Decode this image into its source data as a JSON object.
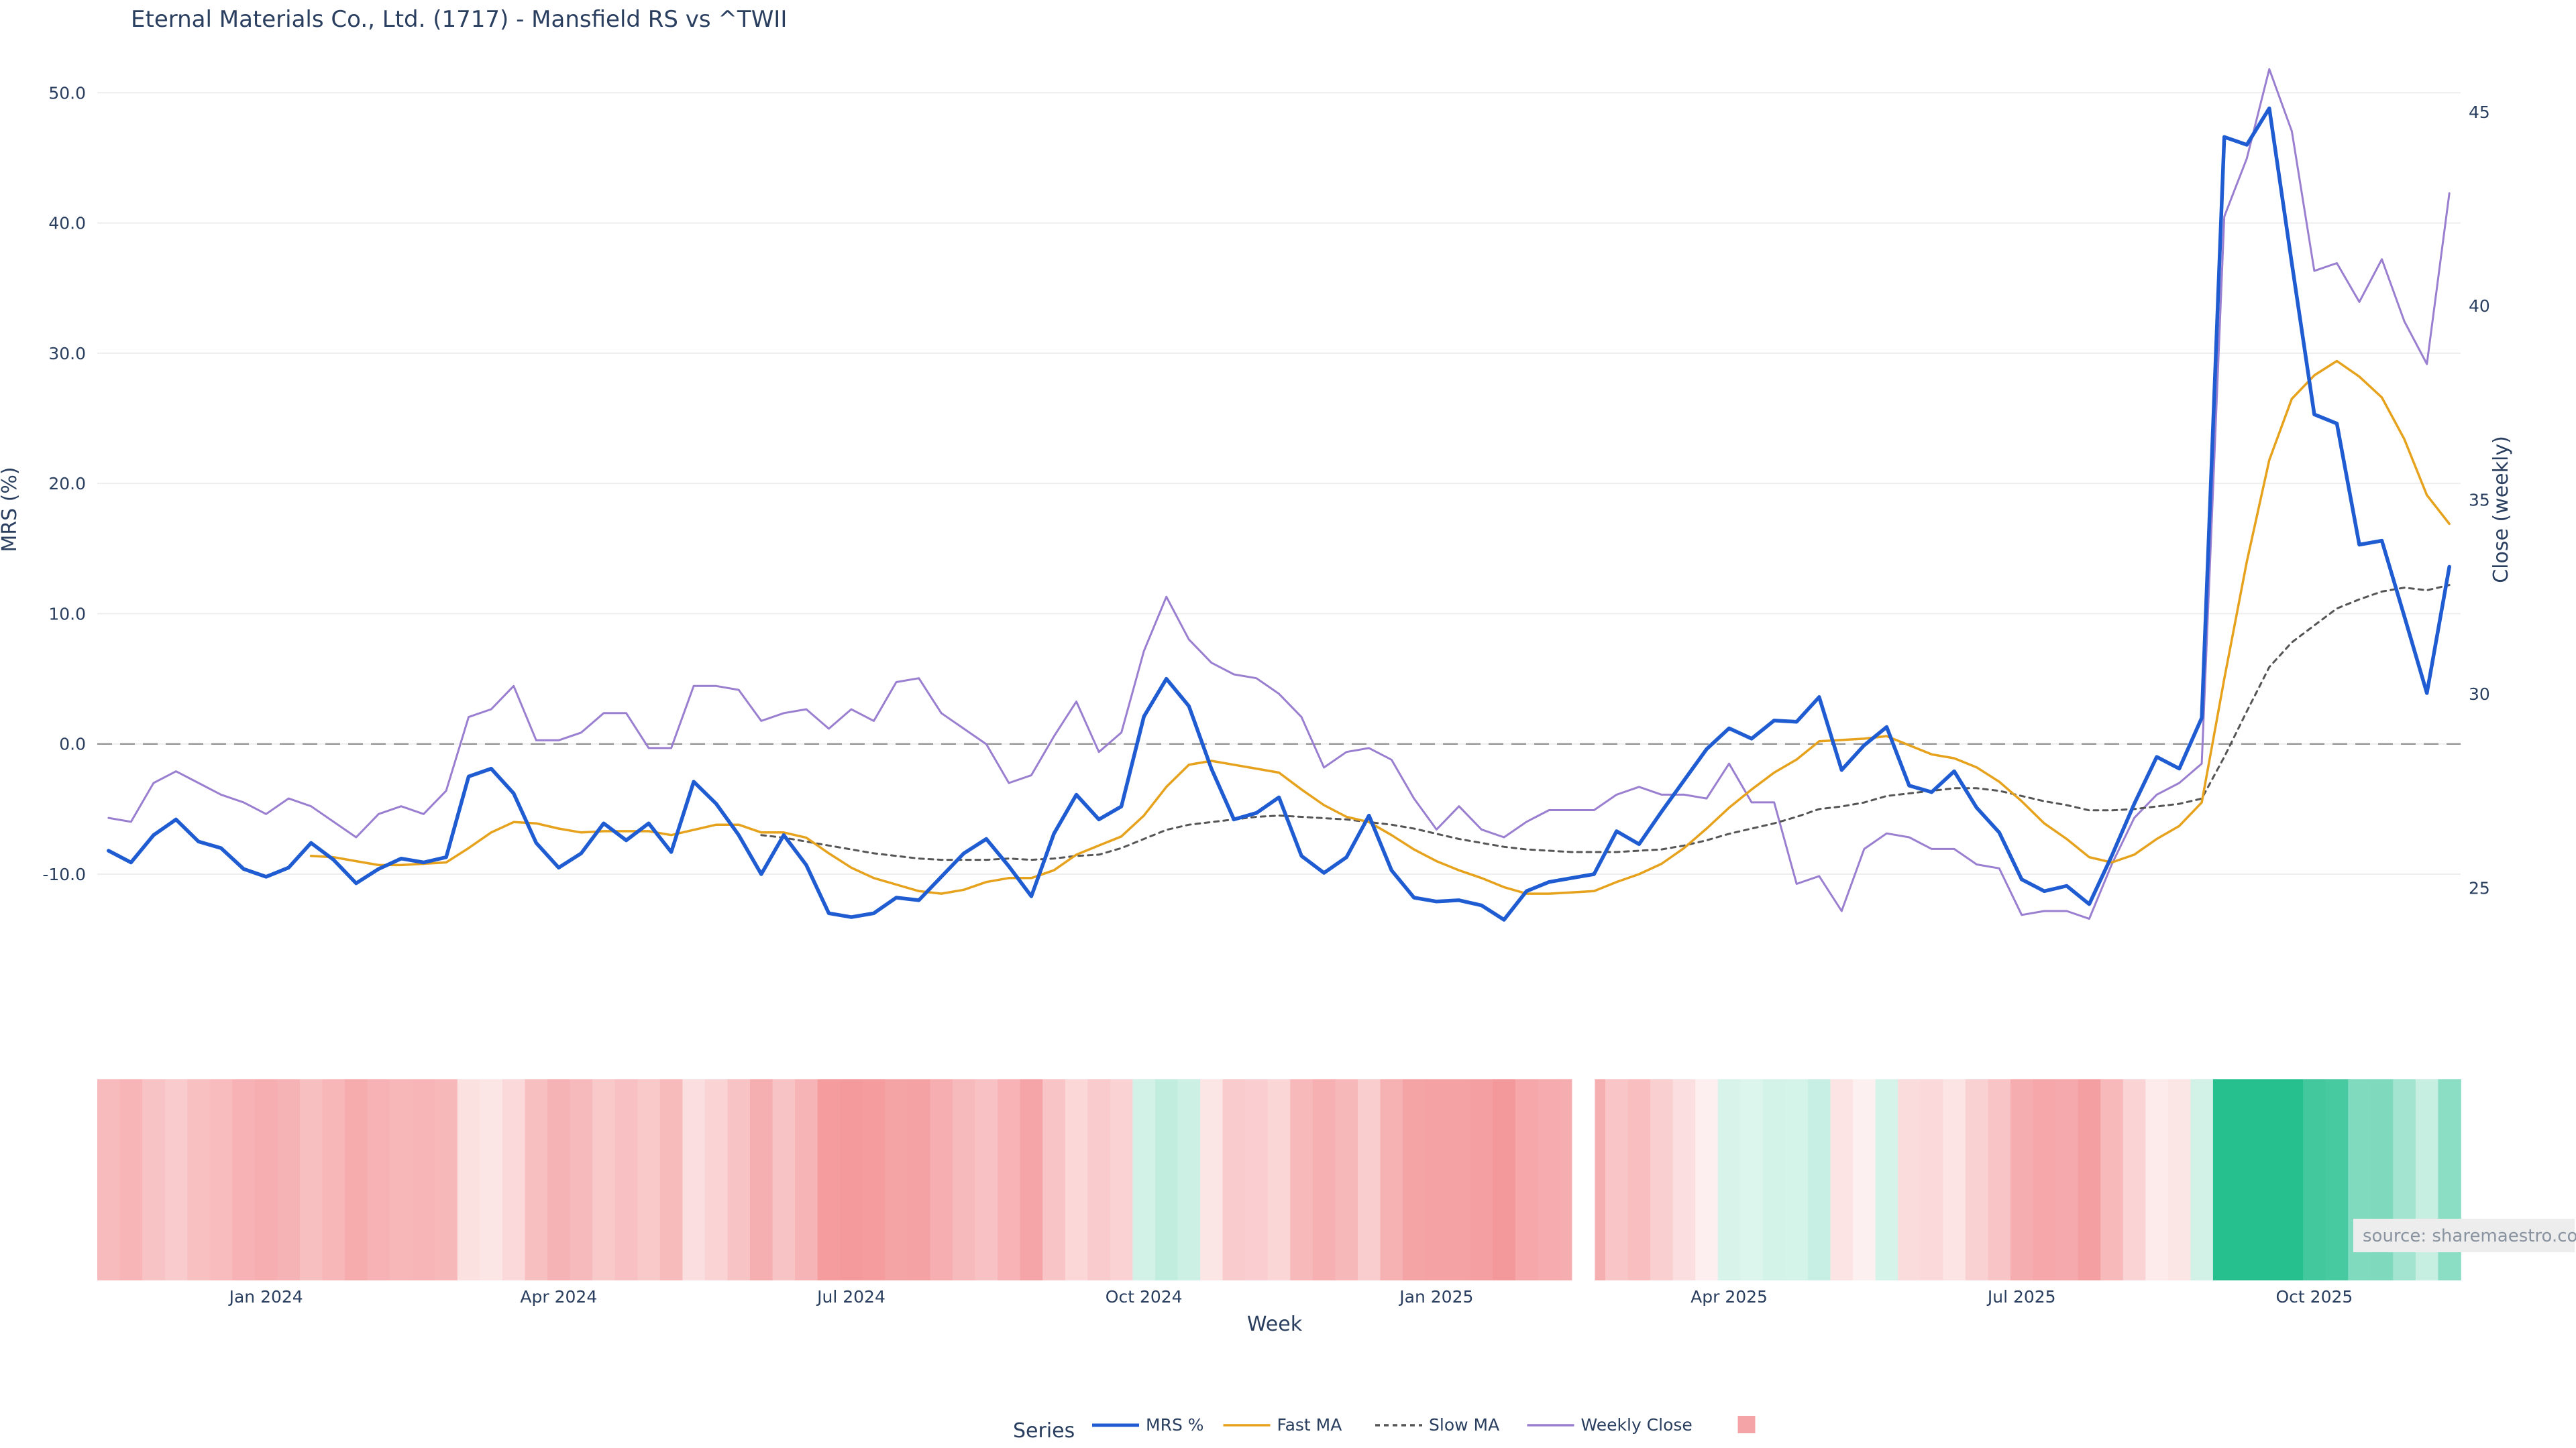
{
  "chart_data": {
    "type": "line",
    "title": "Eternal Materials Co., Ltd. (1717) - Mansfield RS vs ^TWII",
    "xlabel": "Week",
    "ylabel_left": "MRS (%)",
    "ylabel_right": "Close (weekly)",
    "y_left_range": [
      -17,
      53
    ],
    "y_left_ticks": [
      50,
      40,
      30,
      20,
      10,
      0,
      -10
    ],
    "y_left_tick_labels": [
      "50.0",
      "40.0",
      "30.0",
      "20.0",
      "10.0",
      "0.0",
      "-10.0"
    ],
    "y_right_range": [
      23.0,
      46.5
    ],
    "y_right_ticks": [
      45,
      40,
      35,
      30,
      25
    ],
    "y_right_tick_labels": [
      "45",
      "40",
      "35",
      "30",
      "25"
    ],
    "x_tick_labels": [
      "Jan 2024",
      "Apr 2024",
      "Jul 2024",
      "Oct 2024",
      "Jan 2025",
      "Apr 2025",
      "Jul 2025",
      "Oct 2025"
    ],
    "x_tick_weeks": [
      7,
      20,
      33,
      46,
      59,
      72,
      85,
      98
    ],
    "reference_line": 0,
    "gap_after_week": 65,
    "series": [
      {
        "name": "MRS %",
        "color": "#1f5bd1",
        "axis": "left",
        "style": "solid",
        "values": [
          -8.2,
          -9.1,
          -7.0,
          -5.8,
          -7.5,
          -8.0,
          -9.6,
          -10.2,
          -9.5,
          -7.6,
          -8.9,
          -10.7,
          -9.6,
          -8.8,
          -9.1,
          -8.7,
          -2.5,
          -1.9,
          -3.8,
          -7.6,
          -9.5,
          -8.4,
          -6.1,
          -7.4,
          -6.1,
          -8.3,
          -2.9,
          -4.6,
          -7.0,
          -10.0,
          -7.0,
          -9.3,
          -13.0,
          -13.3,
          -13.0,
          -11.8,
          -12.0,
          -10.2,
          -8.4,
          -7.3,
          -9.4,
          -11.7,
          -6.9,
          -3.9,
          -5.8,
          -4.8,
          2.1,
          5.0,
          2.9,
          -1.9,
          -5.8,
          -5.3,
          -4.1,
          -8.6,
          -9.9,
          -8.7,
          -5.5,
          -9.7,
          -11.8,
          -12.1,
          -12.0,
          -12.4,
          -13.5,
          -11.3,
          -10.6,
          -10.3,
          -10.0,
          -6.7,
          -7.7,
          -5.2,
          -2.8,
          -0.4,
          1.2,
          0.4,
          1.8,
          1.7,
          3.6,
          -2.0,
          -0.1,
          1.3,
          -3.2,
          -3.7,
          -2.1,
          -4.9,
          -6.8,
          -10.4,
          -11.3,
          -10.9,
          -12.3,
          -8.6,
          -4.6,
          -1.0,
          -1.9,
          2.0,
          46.6,
          46.0,
          48.8,
          36.9,
          25.3,
          24.6,
          15.3,
          15.6,
          9.8,
          3.9,
          13.6
        ]
      },
      {
        "name": "Fast MA",
        "color": "#e6a21c",
        "axis": "left",
        "style": "solid",
        "values": [
          null,
          null,
          null,
          null,
          null,
          null,
          null,
          null,
          null,
          -8.6,
          -8.7,
          -9.0,
          -9.3,
          -9.3,
          -9.2,
          -9.1,
          -8.0,
          -6.8,
          -6.0,
          -6.1,
          -6.5,
          -6.8,
          -6.7,
          -6.7,
          -6.7,
          -7.0,
          -6.6,
          -6.2,
          -6.2,
          -6.8,
          -6.8,
          -7.2,
          -8.4,
          -9.5,
          -10.3,
          -10.8,
          -11.3,
          -11.5,
          -11.2,
          -10.6,
          -10.3,
          -10.3,
          -9.7,
          -8.5,
          -7.8,
          -7.1,
          -5.5,
          -3.3,
          -1.6,
          -1.3,
          -1.6,
          -1.9,
          -2.2,
          -3.5,
          -4.7,
          -5.6,
          -6.0,
          -7.0,
          -8.1,
          -9.0,
          -9.7,
          -10.3,
          -11.0,
          -11.5,
          -11.5,
          -11.4,
          -11.3,
          -10.6,
          -10.0,
          -9.2,
          -8.0,
          -6.5,
          -4.9,
          -3.5,
          -2.2,
          -1.2,
          0.2,
          0.3,
          0.4,
          0.6,
          -0.1,
          -0.8,
          -1.1,
          -1.8,
          -2.9,
          -4.4,
          -6.1,
          -7.3,
          -8.7,
          -9.1,
          -8.5,
          -7.3,
          -6.3,
          -4.5,
          5.0,
          14.0,
          21.8,
          26.5,
          28.3,
          29.4,
          28.2,
          26.6,
          23.4,
          19.1,
          16.9
        ]
      },
      {
        "name": "Slow MA",
        "color": "#555555",
        "axis": "left",
        "style": "dashed",
        "values": [
          null,
          null,
          null,
          null,
          null,
          null,
          null,
          null,
          null,
          null,
          null,
          null,
          null,
          null,
          null,
          null,
          null,
          null,
          null,
          null,
          null,
          null,
          null,
          null,
          null,
          null,
          null,
          null,
          null,
          -7.0,
          -7.2,
          -7.5,
          -7.8,
          -8.1,
          -8.4,
          -8.6,
          -8.8,
          -8.9,
          -8.9,
          -8.9,
          -8.8,
          -8.9,
          -8.8,
          -8.6,
          -8.5,
          -8.0,
          -7.3,
          -6.6,
          -6.2,
          -6.0,
          -5.8,
          -5.6,
          -5.5,
          -5.6,
          -5.7,
          -5.8,
          -6.0,
          -6.2,
          -6.5,
          -6.9,
          -7.3,
          -7.6,
          -7.9,
          -8.1,
          -8.2,
          -8.3,
          -8.3,
          -8.3,
          -8.2,
          -8.1,
          -7.8,
          -7.4,
          -6.9,
          -6.5,
          -6.1,
          -5.6,
          -5.0,
          -4.8,
          -4.5,
          -4.0,
          -3.8,
          -3.6,
          -3.4,
          -3.4,
          -3.6,
          -4.0,
          -4.4,
          -4.7,
          -5.1,
          -5.1,
          -5.0,
          -4.8,
          -4.6,
          -4.2,
          -1.0,
          2.5,
          5.9,
          7.8,
          9.1,
          10.4,
          11.1,
          11.7,
          12.0,
          11.8,
          12.2
        ]
      },
      {
        "name": "Weekly Close",
        "color": "#9a7fd1",
        "axis": "right",
        "style": "solid",
        "values": [
          26.8,
          26.7,
          27.7,
          28.0,
          27.7,
          27.4,
          27.2,
          26.9,
          27.3,
          27.1,
          26.7,
          26.3,
          26.9,
          27.1,
          26.9,
          27.5,
          29.4,
          29.6,
          30.2,
          28.8,
          28.8,
          29.0,
          29.5,
          29.5,
          28.6,
          28.6,
          30.2,
          30.2,
          30.1,
          29.3,
          29.5,
          29.6,
          29.1,
          29.6,
          29.3,
          30.3,
          30.4,
          29.5,
          29.1,
          28.7,
          27.7,
          27.9,
          28.9,
          29.8,
          28.5,
          29.0,
          31.1,
          32.5,
          31.4,
          30.8,
          30.5,
          30.4,
          30.0,
          29.4,
          28.1,
          28.5,
          28.6,
          28.3,
          27.3,
          26.5,
          27.1,
          26.5,
          26.3,
          26.7,
          27.0,
          27.0,
          27.0,
          27.4,
          27.6,
          27.4,
          27.4,
          27.3,
          28.2,
          27.2,
          27.2,
          25.1,
          25.3,
          24.4,
          26.0,
          26.4,
          26.3,
          26.0,
          26.0,
          25.6,
          25.5,
          24.3,
          24.4,
          24.4,
          24.2,
          25.6,
          26.8,
          27.4,
          27.7,
          28.2,
          42.3,
          43.8,
          46.1,
          44.5,
          40.9,
          41.1,
          40.1,
          41.2,
          39.6,
          38.5,
          42.9
        ]
      },
      {
        "name": "",
        "color": "#f4a4a6",
        "axis": "heatmap",
        "style": "swatch",
        "values": []
      }
    ],
    "heatmap_values": [
      -8.2,
      -9.1,
      -7.0,
      -5.8,
      -7.5,
      -8.0,
      -9.6,
      -10.2,
      -9.5,
      -7.6,
      -8.9,
      -10.7,
      -9.6,
      -8.8,
      -9.1,
      -8.7,
      -2.5,
      -1.9,
      -3.8,
      -7.6,
      -9.5,
      -8.4,
      -6.1,
      -7.4,
      -6.1,
      -8.3,
      -2.9,
      -4.6,
      -7.0,
      -10.0,
      -7.0,
      -9.3,
      -13.0,
      -13.3,
      -13.0,
      -11.8,
      -12.0,
      -10.2,
      -8.4,
      -7.3,
      -9.4,
      -11.7,
      -6.9,
      -3.9,
      -5.8,
      -4.8,
      2.1,
      5.0,
      2.9,
      -1.9,
      -5.8,
      -5.3,
      -4.1,
      -8.6,
      -9.9,
      -8.7,
      -5.5,
      -9.7,
      -11.8,
      -12.1,
      -12.0,
      -12.4,
      -13.5,
      -11.3,
      -10.6,
      -10.3,
      -10.0,
      -6.7,
      -7.7,
      -5.2,
      -2.8,
      -0.4,
      1.2,
      0.4,
      1.8,
      1.7,
      3.6,
      -2.0,
      -0.1,
      1.3,
      -3.2,
      -3.7,
      -2.1,
      -4.9,
      -6.8,
      -10.4,
      -11.3,
      -10.9,
      -12.3,
      -8.6,
      -4.6,
      -1.0,
      -1.9,
      2.0,
      46.6,
      46.0,
      48.8,
      36.9,
      25.3,
      24.6,
      15.3,
      15.6,
      9.8,
      3.9,
      13.6
    ],
    "legend": {
      "title": "Series",
      "placement": "bottom-center"
    },
    "source": "source: sharemaestro.com"
  },
  "colors": {
    "mrs": "#1f5bd1",
    "fast": "#e6a21c",
    "slow": "#555555",
    "close": "#9a7fd1",
    "neg": "#f28b8e",
    "pos": "#26c08f",
    "grid": "#eeeeee",
    "zero": "#999999"
  }
}
